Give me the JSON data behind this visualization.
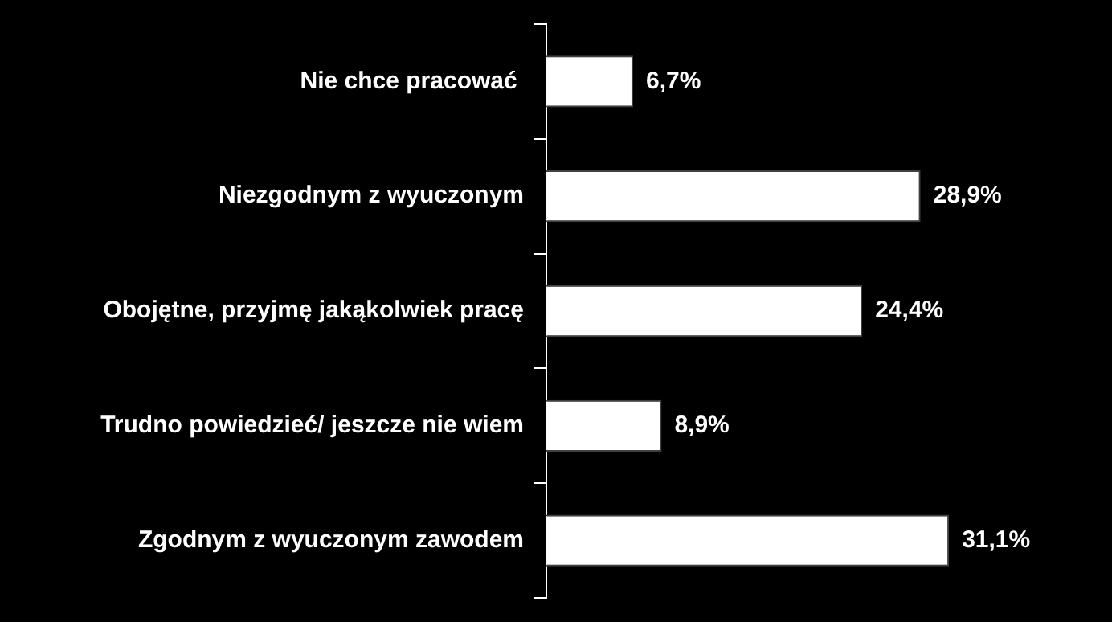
{
  "chart_data": {
    "type": "bar",
    "orientation": "horizontal",
    "categories": [
      "Nie chce pracować ",
      "Niezgodnym z wyuczonym",
      "Obojętne, przyjmę jakąkolwiek pracę",
      "Trudno powiedzieć/ jeszcze nie wiem",
      "Zgodnym z wyuczonym zawodem"
    ],
    "values": [
      6.7,
      28.9,
      24.4,
      8.9,
      31.1
    ],
    "value_labels": [
      "6,7%",
      "28,9%",
      "24,4%",
      "8,9%",
      "31,1%"
    ],
    "color": "#ffffff",
    "legend": false
  }
}
